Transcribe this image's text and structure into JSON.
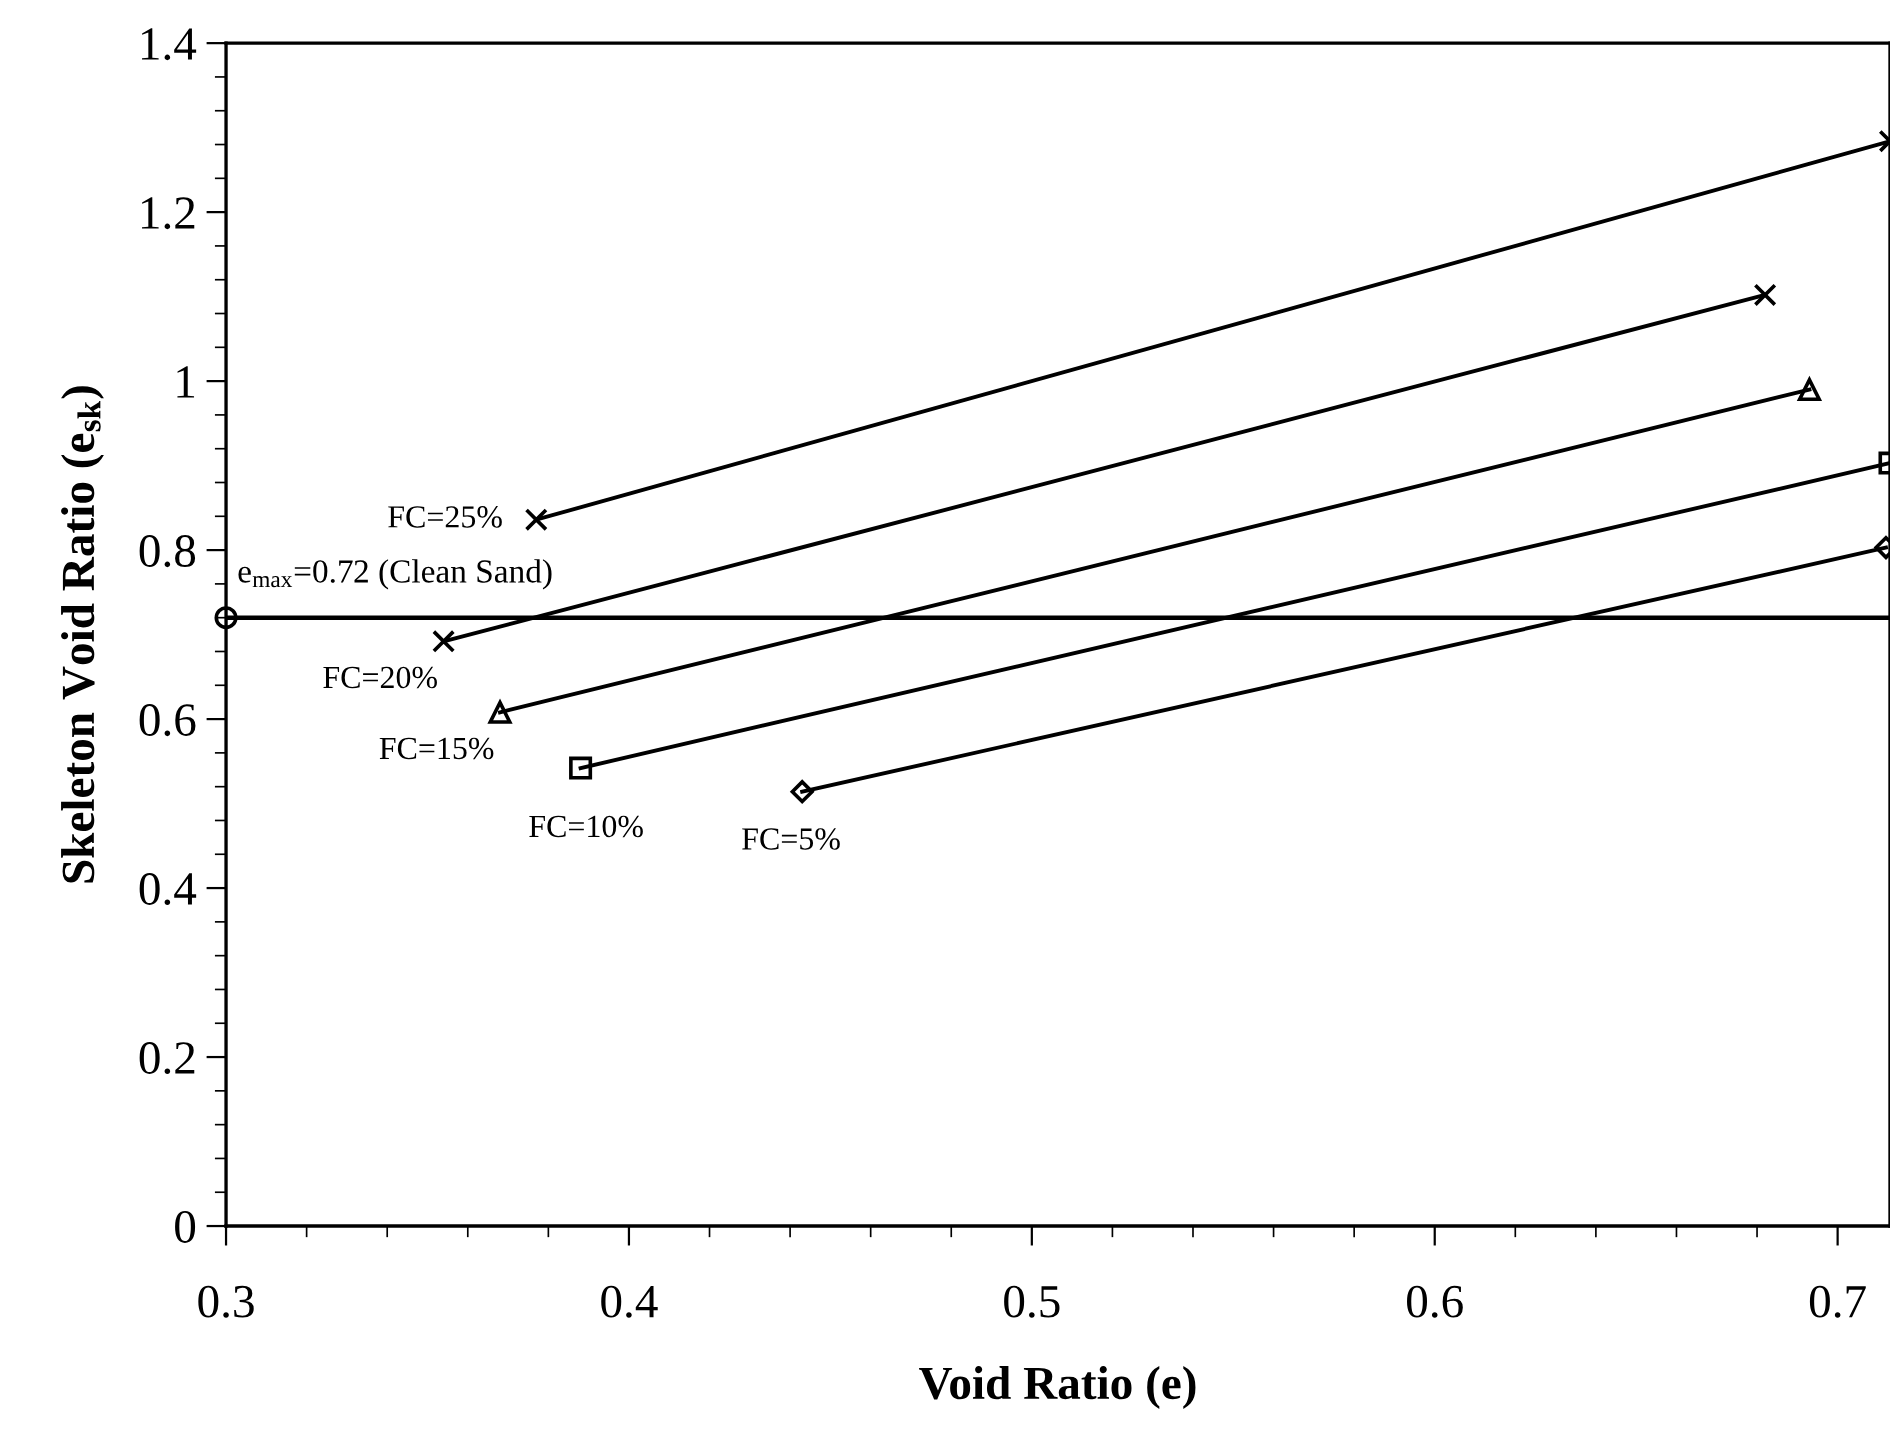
{
  "chart_data": {
    "type": "line",
    "xlabel": "Void Ratio (e)",
    "ylabel": "Skeleton Void Ratio (e$_{sk}$)",
    "xlim": [
      0.3,
      0.713
    ],
    "ylim": [
      0,
      1.4
    ],
    "xticks": [
      0.3,
      {
        "value": 0.32,
        "label": null
      },
      {
        "value": 0.34,
        "label": null
      },
      {
        "value": 0.36,
        "label": null
      },
      {
        "value": 0.38,
        "label": null
      },
      0.4,
      {
        "value": 0.42,
        "label": null
      },
      {
        "value": 0.44,
        "label": null
      },
      {
        "value": 0.46,
        "label": null
      },
      {
        "value": 0.48,
        "label": null
      },
      0.5,
      {
        "value": 0.52,
        "label": null
      },
      {
        "value": 0.54,
        "label": null
      },
      {
        "value": 0.56,
        "label": null
      },
      {
        "value": 0.58,
        "label": null
      },
      0.6,
      {
        "value": 0.62,
        "label": null
      },
      {
        "value": 0.64,
        "label": null
      },
      {
        "value": 0.66,
        "label": null
      },
      {
        "value": 0.68,
        "label": null
      },
      0.7
    ],
    "yticks": [
      0,
      {
        "value": 0.04,
        "label": null
      },
      {
        "value": 0.08,
        "label": null
      },
      {
        "value": 0.12,
        "label": null
      },
      {
        "value": 0.16,
        "label": null
      },
      0.2,
      {
        "value": 0.24,
        "label": null
      },
      {
        "value": 0.28,
        "label": null
      },
      {
        "value": 0.32,
        "label": null
      },
      {
        "value": 0.36,
        "label": null
      },
      0.4,
      {
        "value": 0.44,
        "label": null
      },
      {
        "value": 0.48,
        "label": null
      },
      {
        "value": 0.52,
        "label": null
      },
      {
        "value": 0.56,
        "label": null
      },
      0.6,
      {
        "value": 0.64,
        "label": null
      },
      {
        "value": 0.68,
        "label": null
      },
      {
        "value": 0.72,
        "label": null
      },
      {
        "value": 0.76,
        "label": null
      },
      0.8,
      {
        "value": 0.84,
        "label": null
      },
      {
        "value": 0.88,
        "label": null
      },
      {
        "value": 0.92,
        "label": null
      },
      {
        "value": 0.96,
        "label": null
      },
      1,
      {
        "value": 1.04,
        "label": null
      },
      {
        "value": 1.08,
        "label": null
      },
      {
        "value": 1.12,
        "label": null
      },
      {
        "value": 1.16,
        "label": null
      },
      1.2,
      {
        "value": 1.24,
        "label": null
      },
      {
        "value": 1.28,
        "label": null
      },
      {
        "value": 1.32,
        "label": null
      },
      {
        "value": 1.36,
        "label": null
      },
      1.4
    ],
    "grid": false,
    "line_style": "solid",
    "series": [
      {
        "name": "FC=25%",
        "color": "#000000",
        "marker": "cross",
        "x": [
          0.377,
          0.713
        ],
        "values": [
          0.836,
          1.284
        ]
      },
      {
        "name": "FC=20%",
        "color": "#000000",
        "marker": "cross",
        "x": [
          0.354,
          0.682
        ],
        "values": [
          0.692,
          1.102
        ]
      },
      {
        "name": "FC=15%",
        "color": "#000000",
        "marker": "triangle",
        "x": [
          0.368,
          0.693
        ],
        "values": [
          0.608,
          0.99
        ]
      },
      {
        "name": "FC=10%",
        "color": "#000000",
        "marker": "square",
        "x": [
          0.388,
          0.713
        ],
        "values": [
          0.542,
          0.903
        ]
      },
      {
        "name": "FC=5%",
        "color": "#000000",
        "marker": "diamond",
        "x": [
          0.443,
          0.712
        ],
        "values": [
          0.514,
          0.803
        ]
      },
      {
        "type": "scatter",
        "color": "#000000",
        "marker": "circle",
        "x": [
          0.3
        ],
        "values": [
          0.72
        ]
      }
    ],
    "ref_lines": [
      {
        "axis": "y",
        "value": 0.72,
        "label": "e$_{max}$=0.72 (Clean Sand)",
        "color": "#000000",
        "line_style": "solid"
      }
    ]
  }
}
